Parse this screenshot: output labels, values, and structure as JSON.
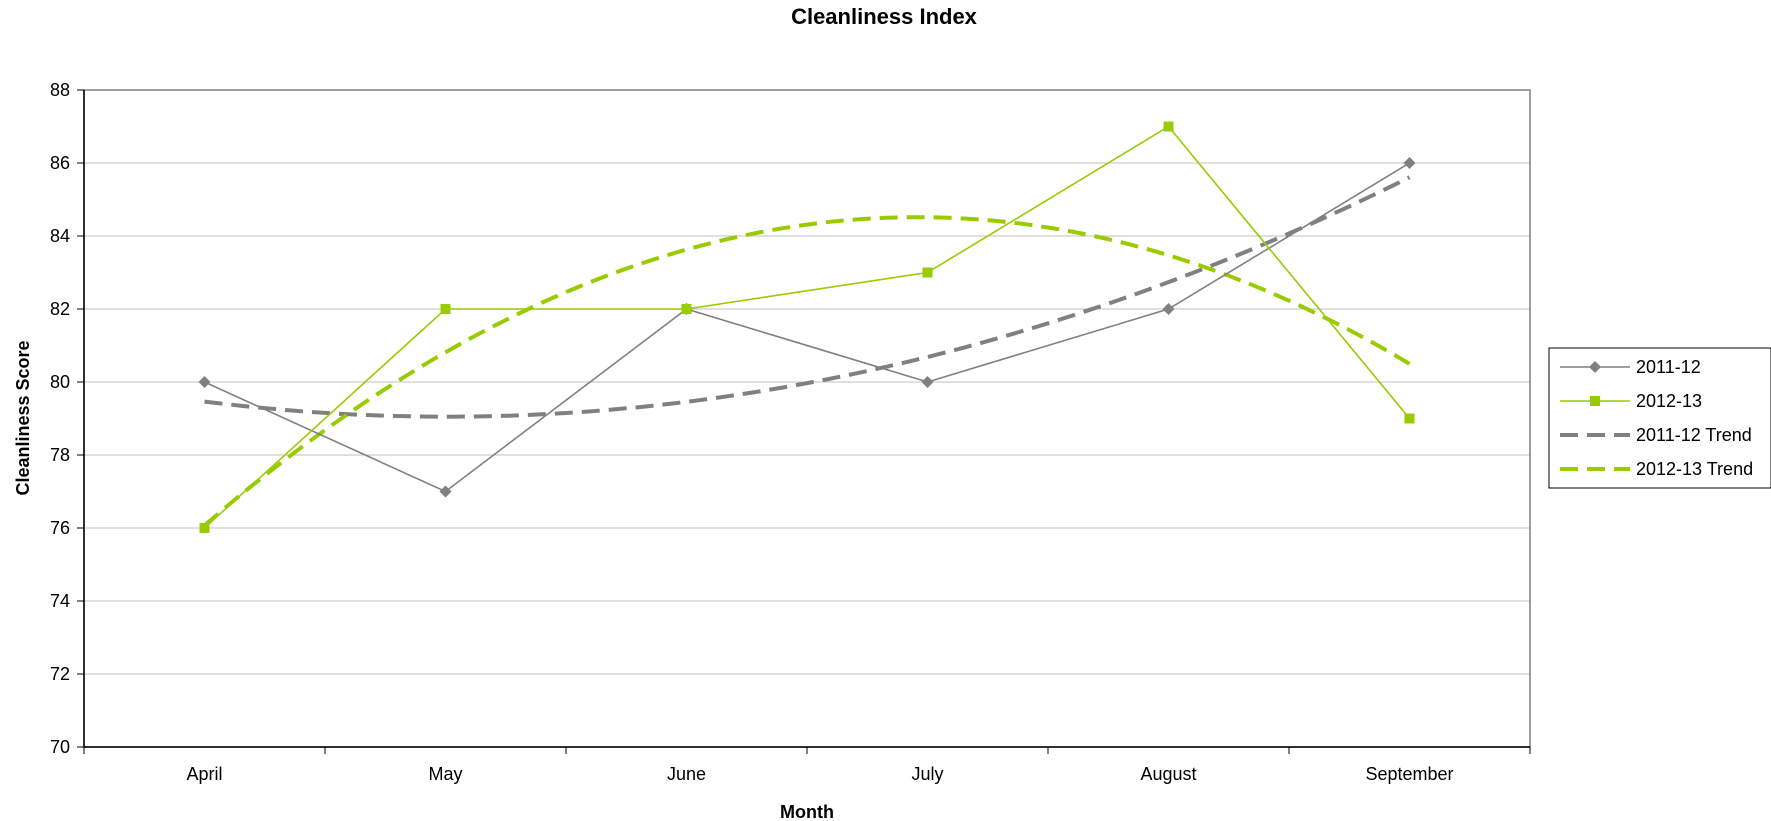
{
  "chart_data": {
    "type": "line",
    "title": "Cleanliness Index",
    "xlabel": "Month",
    "ylabel": "Cleanliness Score",
    "categories": [
      "April",
      "May",
      "June",
      "July",
      "August",
      "September"
    ],
    "ylim": [
      70,
      88
    ],
    "yticks": [
      70,
      72,
      74,
      76,
      78,
      80,
      82,
      84,
      86,
      88
    ],
    "grid": "horizontal",
    "legend_position": "right",
    "series": [
      {
        "name": "2011-12",
        "values": [
          80,
          77,
          82,
          80,
          82,
          86
        ],
        "color": "#808080",
        "marker": "diamond",
        "style": "solid"
      },
      {
        "name": "2012-13",
        "values": [
          76,
          82,
          82,
          83,
          87,
          79
        ],
        "color": "#99CC00",
        "marker": "square",
        "style": "solid"
      },
      {
        "name": "2011-12 Trend",
        "trend_of": "2011-12",
        "trend": "polynomial",
        "color": "#808080",
        "style": "dashed"
      },
      {
        "name": "2012-13 Trend",
        "trend_of": "2012-13",
        "trend": "polynomial",
        "color": "#99CC00",
        "style": "dashed"
      }
    ]
  }
}
